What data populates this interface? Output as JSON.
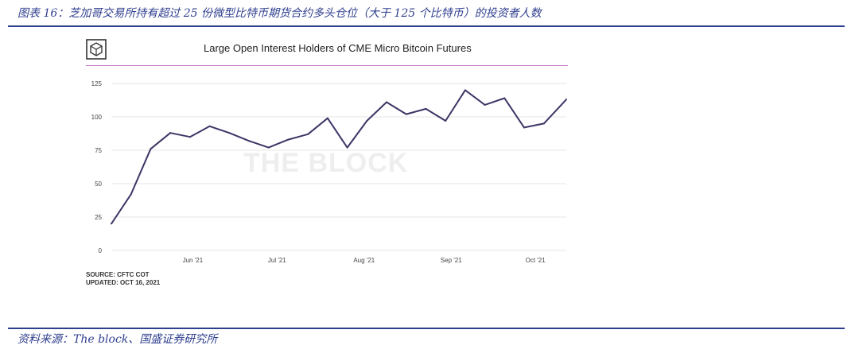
{
  "figure": {
    "caption": "图表 16：芝加哥交易所持有超过 25 份微型比特币期货合约多头仓位（大于 125 个比特币）的投资者人数",
    "source_note": "资料来源：The block、国盛证券研究所"
  },
  "chart_data": {
    "type": "line",
    "title": "Large Open Interest Holders of CME Micro Bitcoin Futures",
    "watermark": "THE BLOCK",
    "logo": "the-block-cube-logo",
    "xlabel": "",
    "ylabel": "",
    "ylim": [
      0,
      125
    ],
    "yticks": [
      0,
      25,
      50,
      75,
      100,
      125
    ],
    "x_ticks": [
      {
        "label": "Jun '21",
        "x": "2021-06-01"
      },
      {
        "label": "Jul '21",
        "x": "2021-07-01"
      },
      {
        "label": "Aug '21",
        "x": "2021-08-01"
      },
      {
        "label": "Sep '21",
        "x": "2021-09-01"
      },
      {
        "label": "Oct '21",
        "x": "2021-10-01"
      }
    ],
    "xlim": [
      "2021-05-03",
      "2021-10-12"
    ],
    "grid": "horizontal",
    "line_color": "#3d3566",
    "series": [
      {
        "points": [
          {
            "x": "2021-05-03",
            "y": 20
          },
          {
            "x": "2021-05-10",
            "y": 42
          },
          {
            "x": "2021-05-17",
            "y": 76
          },
          {
            "x": "2021-05-24",
            "y": 88
          },
          {
            "x": "2021-05-31",
            "y": 85
          },
          {
            "x": "2021-06-07",
            "y": 93
          },
          {
            "x": "2021-06-14",
            "y": 88
          },
          {
            "x": "2021-06-21",
            "y": 82
          },
          {
            "x": "2021-06-28",
            "y": 77
          },
          {
            "x": "2021-07-05",
            "y": 83
          },
          {
            "x": "2021-07-12",
            "y": 87
          },
          {
            "x": "2021-07-19",
            "y": 99
          },
          {
            "x": "2021-07-26",
            "y": 77
          },
          {
            "x": "2021-08-02",
            "y": 97
          },
          {
            "x": "2021-08-09",
            "y": 111
          },
          {
            "x": "2021-08-16",
            "y": 102
          },
          {
            "x": "2021-08-23",
            "y": 106
          },
          {
            "x": "2021-08-30",
            "y": 97
          },
          {
            "x": "2021-09-06",
            "y": 120
          },
          {
            "x": "2021-09-13",
            "y": 109
          },
          {
            "x": "2021-09-20",
            "y": 114
          },
          {
            "x": "2021-09-27",
            "y": 92
          },
          {
            "x": "2021-10-04",
            "y": 95
          },
          {
            "x": "2021-10-12",
            "y": 113
          }
        ]
      }
    ],
    "source": "SOURCE: CFTC COT",
    "updated": "UPDATED: OCT 16, 2021"
  }
}
